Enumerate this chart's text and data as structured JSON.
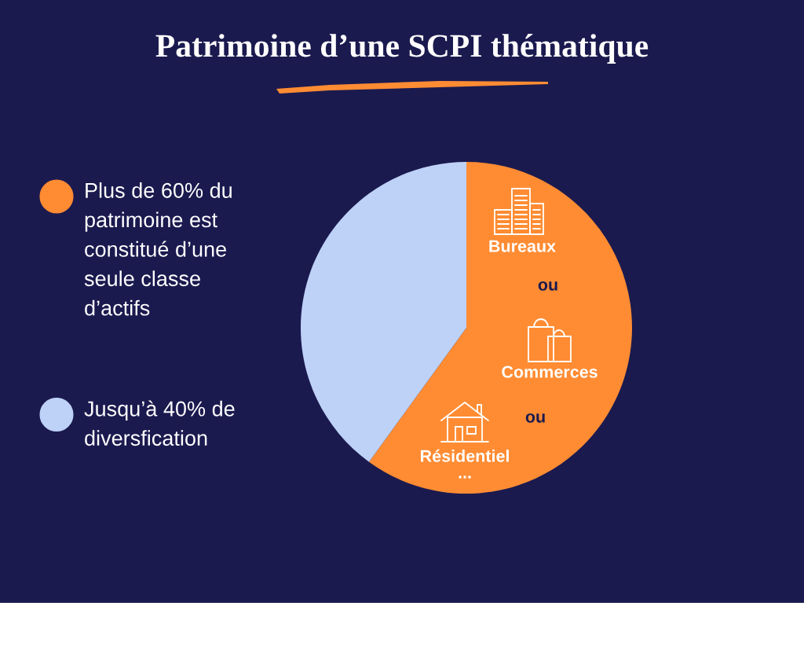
{
  "chart_data": {
    "type": "pie",
    "title": "Patrimoine d’une SCPI thématique",
    "categories": [
      "Plus de 60% du patrimoine est constitué d’une seule classe d’actifs",
      "Jusqu’à 40% de diversfication"
    ],
    "values": [
      60,
      40
    ],
    "colors": [
      "#ff8c33",
      "#bed2f7"
    ],
    "legend": "left",
    "annotations": [
      "Bureaux",
      "ou",
      "Commerces",
      "ou",
      "Résidentiel",
      "..."
    ]
  }
}
